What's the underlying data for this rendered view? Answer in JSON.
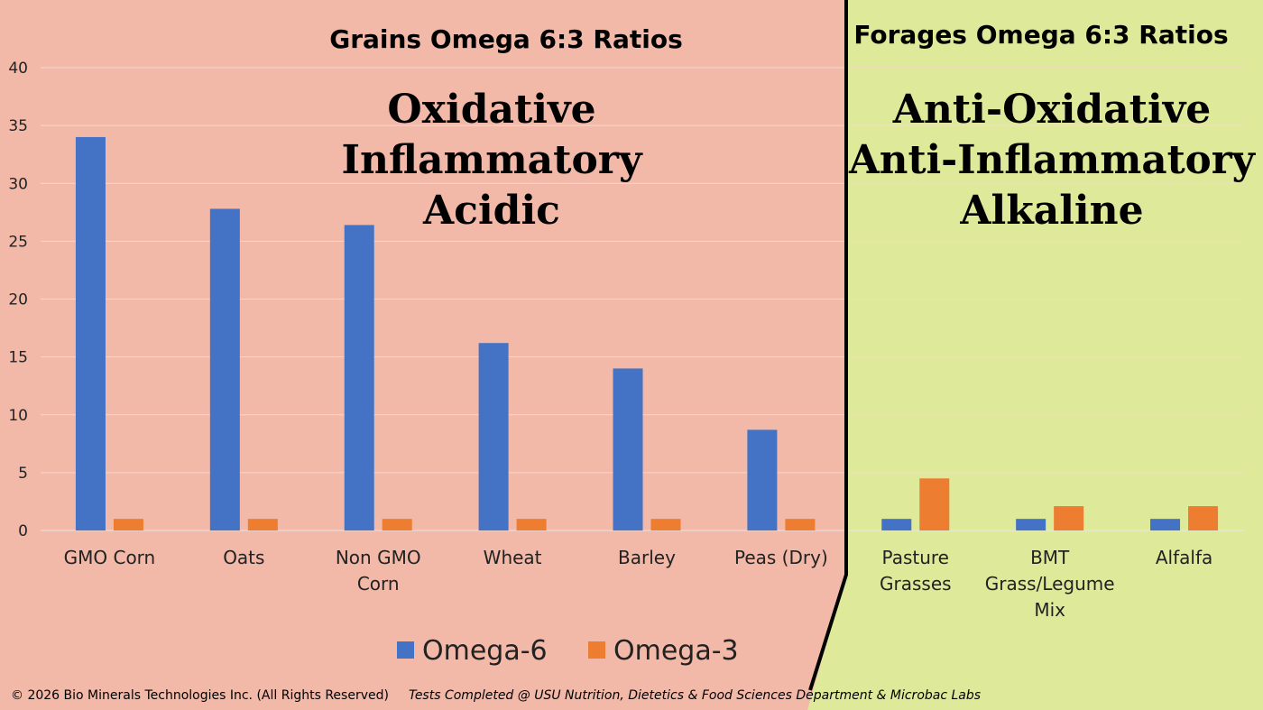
{
  "colors": {
    "grains_background": "#f2b8a8",
    "forages_background": "#dfe99a",
    "omega6": "#4472c4",
    "omega3": "#ed7d31",
    "divider": "#000000"
  },
  "panels": {
    "grains": {
      "title": "Grains Omega 6:3 Ratios",
      "lines": [
        "Oxidative",
        "Inflammatory",
        "Acidic"
      ]
    },
    "forages": {
      "title": "Forages Omega 6:3 Ratios",
      "lines": [
        "Anti-Oxidative",
        "Anti-Inflammatory",
        "Alkaline"
      ]
    }
  },
  "chart_data": {
    "type": "bar",
    "categories": [
      [
        "GMO Corn"
      ],
      [
        "Oats"
      ],
      [
        "Non GMO",
        "Corn"
      ],
      [
        "Wheat"
      ],
      [
        "Barley"
      ],
      [
        "Peas (Dry)"
      ],
      [
        "Pasture",
        "Grasses"
      ],
      [
        "BMT",
        "Grass/Legume",
        "Mix"
      ],
      [
        "Alfalfa"
      ]
    ],
    "series": [
      {
        "name": "Omega-6",
        "values": [
          34,
          27.8,
          26.4,
          16.2,
          14,
          8.7,
          1,
          1,
          1
        ]
      },
      {
        "name": "Omega-3",
        "values": [
          1,
          1,
          1,
          1,
          1,
          1,
          4.5,
          2.1,
          2.1
        ]
      }
    ],
    "ylim": [
      0,
      40
    ],
    "yticks": [
      0,
      5,
      10,
      15,
      20,
      25,
      30,
      35,
      40
    ],
    "grid": true,
    "legend": "bottom"
  },
  "footer": {
    "copyright": "© 2026 Bio Minerals Technologies Inc. (All Rights Reserved)",
    "note": "Tests Completed @ USU Nutrition, Dietetics & Food Sciences Department & Microbac Labs"
  }
}
